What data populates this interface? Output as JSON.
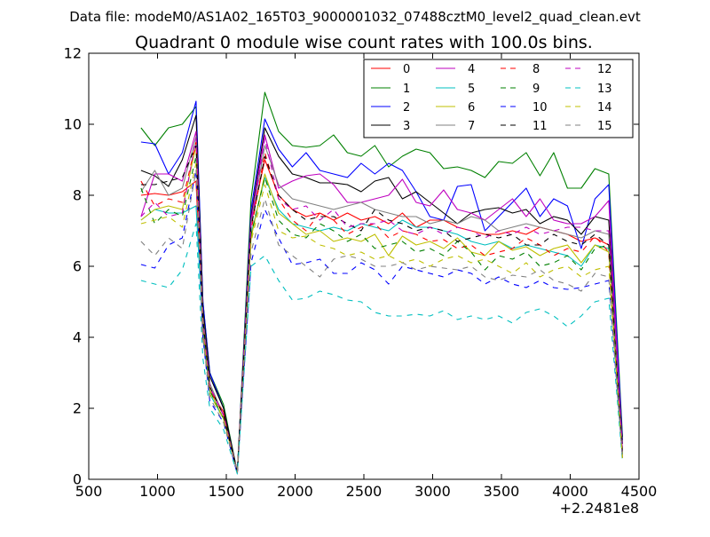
{
  "figure": {
    "suptitle": "Data file: modeM0/AS1A02_165T03_9000001032_07488cztM0_level2_quad_clean.evt"
  },
  "chart_data": {
    "type": "line",
    "title": "Quadrant 0 module wise count rates with 100.0s bins.",
    "xlabel": "",
    "ylabel": "",
    "x_offset_label": "+2.2481e8",
    "xlim": [
      500,
      4500
    ],
    "ylim": [
      0,
      12
    ],
    "xticks": [
      500,
      1000,
      1500,
      2000,
      2500,
      3000,
      3500,
      4000,
      4500
    ],
    "xtick_labels": [
      "500",
      "1000",
      "1500",
      "2000",
      "2500",
      "3000",
      "3500",
      "4000",
      "4500"
    ],
    "yticks": [
      0,
      2,
      4,
      6,
      8,
      10,
      12
    ],
    "ytick_labels": [
      "0",
      "2",
      "4",
      "6",
      "8",
      "10",
      "12"
    ],
    "grid": false,
    "legend_placement": "top-right",
    "legend_columns": 4,
    "x": [
      880,
      980,
      1080,
      1180,
      1280,
      1330,
      1380,
      1480,
      1580,
      1680,
      1780,
      1880,
      1980,
      2080,
      2180,
      2280,
      2380,
      2480,
      2580,
      2680,
      2780,
      2880,
      2980,
      3080,
      3180,
      3280,
      3380,
      3480,
      3580,
      3680,
      3780,
      3880,
      3980,
      4080,
      4180,
      4280,
      4380
    ],
    "series": [
      {
        "name": "0",
        "color": "#ff0000",
        "dash": "solid",
        "values": [
          8.0,
          8.05,
          8.0,
          8.1,
          8.4,
          4.0,
          2.5,
          1.9,
          0.2,
          7.2,
          9.0,
          8.0,
          7.6,
          7.4,
          7.5,
          7.3,
          7.5,
          7.3,
          7.4,
          7.2,
          7.5,
          7.1,
          7.3,
          7.3,
          7.1,
          7.0,
          6.9,
          6.9,
          7.0,
          6.9,
          7.1,
          7.0,
          6.9,
          6.7,
          6.8,
          6.6,
          0.6
        ]
      },
      {
        "name": "1",
        "color": "#008000",
        "dash": "solid",
        "values": [
          9.9,
          9.4,
          9.9,
          10.0,
          10.5,
          5.0,
          3.0,
          2.1,
          0.2,
          7.9,
          10.9,
          9.8,
          9.4,
          9.35,
          9.4,
          9.7,
          9.2,
          9.1,
          9.4,
          8.8,
          9.1,
          9.3,
          9.2,
          8.75,
          8.8,
          8.7,
          8.5,
          8.95,
          8.9,
          9.2,
          8.55,
          9.2,
          8.2,
          8.2,
          8.75,
          8.6,
          1.2
        ]
      },
      {
        "name": "2",
        "color": "#0000ff",
        "dash": "solid",
        "values": [
          9.5,
          9.45,
          8.6,
          9.2,
          10.65,
          5.0,
          3.0,
          2.0,
          0.2,
          7.6,
          10.15,
          9.3,
          8.8,
          9.2,
          8.7,
          8.6,
          8.5,
          8.9,
          8.6,
          8.9,
          8.7,
          8.1,
          7.4,
          7.3,
          8.25,
          8.3,
          7.0,
          7.4,
          7.8,
          8.2,
          7.4,
          7.9,
          7.7,
          6.5,
          7.9,
          8.3,
          1.1
        ]
      },
      {
        "name": "3",
        "color": "#000000",
        "dash": "solid",
        "values": [
          8.7,
          8.55,
          8.25,
          9.0,
          10.25,
          4.8,
          2.9,
          2.0,
          0.2,
          7.4,
          9.9,
          9.1,
          8.6,
          8.5,
          8.35,
          8.35,
          8.3,
          8.1,
          8.4,
          8.5,
          7.9,
          8.1,
          7.8,
          7.5,
          7.2,
          7.5,
          7.6,
          7.65,
          7.5,
          7.6,
          7.2,
          7.4,
          7.3,
          6.9,
          7.4,
          7.3,
          1.0
        ]
      },
      {
        "name": "4",
        "color": "#bf00bf",
        "dash": "solid",
        "values": [
          7.4,
          8.6,
          8.6,
          8.4,
          9.8,
          4.5,
          2.6,
          1.8,
          0.2,
          7.3,
          9.7,
          8.2,
          8.4,
          8.55,
          8.6,
          8.3,
          7.8,
          7.8,
          7.9,
          8.0,
          8.45,
          7.8,
          7.7,
          8.15,
          7.6,
          7.5,
          7.3,
          7.6,
          7.9,
          7.4,
          7.9,
          7.3,
          7.2,
          7.2,
          7.4,
          7.85,
          0.8
        ]
      },
      {
        "name": "5",
        "color": "#00bfbf",
        "dash": "solid",
        "values": [
          7.3,
          7.6,
          7.5,
          7.5,
          7.7,
          4.2,
          2.4,
          1.7,
          0.2,
          6.9,
          8.5,
          7.6,
          7.2,
          7.1,
          7.0,
          7.1,
          7.0,
          7.2,
          7.1,
          7.0,
          7.3,
          7.1,
          7.1,
          7.0,
          6.9,
          6.7,
          6.6,
          6.7,
          6.5,
          6.6,
          6.5,
          6.4,
          6.3,
          6.0,
          6.6,
          6.5,
          0.7
        ]
      },
      {
        "name": "6",
        "color": "#bfbf00",
        "dash": "solid",
        "values": [
          7.3,
          7.6,
          7.7,
          7.6,
          9.4,
          4.4,
          2.5,
          1.7,
          0.2,
          6.8,
          8.6,
          7.5,
          7.2,
          6.9,
          7.0,
          6.7,
          6.8,
          6.7,
          6.9,
          6.3,
          6.85,
          6.6,
          6.7,
          6.5,
          6.8,
          6.4,
          6.3,
          6.7,
          6.45,
          6.55,
          6.3,
          6.5,
          6.6,
          6.1,
          6.6,
          6.4,
          0.7
        ]
      },
      {
        "name": "7",
        "color": "#808080",
        "dash": "solid",
        "values": [
          8.1,
          8.7,
          8.0,
          8.2,
          9.65,
          4.6,
          2.7,
          1.8,
          0.2,
          7.2,
          9.4,
          8.3,
          7.9,
          7.8,
          7.7,
          7.6,
          7.7,
          7.8,
          7.6,
          7.5,
          7.4,
          7.4,
          7.2,
          7.3,
          7.2,
          7.4,
          7.3,
          7.0,
          7.1,
          7.2,
          7.1,
          7.0,
          6.9,
          6.8,
          7.0,
          6.9,
          0.8
        ]
      },
      {
        "name": "8",
        "color": "#ff0000",
        "dash": "dashed",
        "values": [
          8.4,
          7.7,
          7.9,
          7.8,
          9.5,
          4.4,
          2.6,
          1.8,
          0.2,
          7.0,
          9.2,
          7.9,
          7.3,
          7.0,
          7.5,
          7.3,
          6.9,
          7.1,
          7.2,
          6.8,
          7.0,
          6.9,
          6.7,
          6.75,
          6.5,
          6.6,
          6.3,
          6.4,
          6.5,
          6.8,
          6.6,
          6.3,
          6.5,
          6.4,
          6.85,
          6.4,
          0.7
        ]
      },
      {
        "name": "9",
        "color": "#008000",
        "dash": "dashed",
        "values": [
          8.2,
          7.2,
          7.6,
          7.4,
          9.1,
          4.3,
          2.5,
          1.7,
          0.2,
          6.9,
          8.5,
          7.3,
          6.9,
          6.8,
          7.2,
          7.0,
          6.7,
          6.9,
          6.5,
          6.6,
          6.7,
          6.4,
          6.5,
          6.3,
          6.7,
          6.4,
          5.9,
          6.3,
          6.2,
          6.4,
          6.0,
          6.1,
          6.3,
          5.9,
          6.5,
          6.6,
          0.6
        ]
      },
      {
        "name": "10",
        "color": "#0000ff",
        "dash": "dashed",
        "values": [
          6.05,
          5.95,
          6.6,
          6.8,
          8.7,
          4.0,
          2.2,
          1.6,
          0.15,
          6.1,
          7.6,
          6.8,
          6.05,
          6.1,
          6.2,
          5.8,
          5.8,
          6.1,
          5.9,
          5.5,
          6.0,
          5.9,
          5.8,
          5.7,
          5.9,
          5.8,
          5.5,
          5.7,
          5.5,
          5.4,
          5.6,
          5.4,
          5.35,
          5.4,
          5.5,
          5.6,
          0.6
        ]
      },
      {
        "name": "11",
        "color": "#000000",
        "dash": "dashed",
        "values": [
          8.3,
          8.3,
          8.4,
          8.5,
          9.4,
          4.5,
          2.6,
          1.8,
          0.2,
          7.1,
          9.1,
          8.0,
          7.6,
          7.3,
          7.4,
          7.4,
          7.2,
          7.0,
          7.6,
          7.3,
          7.2,
          7.0,
          7.1,
          7.0,
          6.7,
          6.8,
          6.9,
          6.8,
          6.9,
          6.6,
          6.6,
          6.9,
          6.7,
          6.6,
          6.9,
          6.6,
          0.7
        ]
      },
      {
        "name": "12",
        "color": "#bf00bf",
        "dash": "dashed",
        "values": [
          7.4,
          7.8,
          7.4,
          7.5,
          9.6,
          4.4,
          2.6,
          1.8,
          0.2,
          7.2,
          9.6,
          7.9,
          7.6,
          7.7,
          7.3,
          7.6,
          7.1,
          7.2,
          7.2,
          7.3,
          7.0,
          6.9,
          7.1,
          6.9,
          7.1,
          7.0,
          6.8,
          7.0,
          6.9,
          7.1,
          6.9,
          7.0,
          7.1,
          7.1,
          7.0,
          7.0,
          0.8
        ]
      },
      {
        "name": "13",
        "color": "#00bfbf",
        "dash": "dashed",
        "values": [
          5.6,
          5.5,
          5.4,
          5.9,
          7.2,
          3.4,
          2.0,
          1.4,
          0.15,
          6.0,
          6.3,
          5.6,
          5.05,
          5.1,
          5.3,
          5.2,
          5.05,
          5.0,
          4.7,
          4.6,
          4.6,
          4.65,
          4.6,
          4.75,
          4.5,
          4.6,
          4.5,
          4.6,
          4.4,
          4.7,
          4.8,
          4.6,
          4.3,
          4.6,
          5.0,
          5.1,
          0.5
        ]
      },
      {
        "name": "14",
        "color": "#bfbf00",
        "dash": "dashed",
        "values": [
          7.2,
          7.3,
          7.4,
          7.1,
          8.9,
          4.2,
          2.4,
          1.7,
          0.2,
          6.7,
          8.3,
          7.0,
          6.8,
          6.85,
          6.6,
          6.5,
          6.3,
          6.4,
          6.2,
          6.3,
          6.1,
          6.2,
          6.0,
          6.2,
          6.3,
          6.1,
          6.2,
          6.0,
          5.8,
          6.1,
          5.7,
          5.9,
          6.0,
          5.7,
          5.9,
          6.0,
          0.6
        ]
      },
      {
        "name": "15",
        "color": "#808080",
        "dash": "dashed",
        "values": [
          6.7,
          6.3,
          6.8,
          6.5,
          8.7,
          4.0,
          2.3,
          1.6,
          0.2,
          6.4,
          7.9,
          6.6,
          6.3,
          6.0,
          5.7,
          6.2,
          6.3,
          6.2,
          6.0,
          6.0,
          6.1,
          5.9,
          6.0,
          5.95,
          5.9,
          6.0,
          5.7,
          5.6,
          5.75,
          5.7,
          5.9,
          5.6,
          5.5,
          5.3,
          5.8,
          5.7,
          0.6
        ]
      }
    ]
  }
}
